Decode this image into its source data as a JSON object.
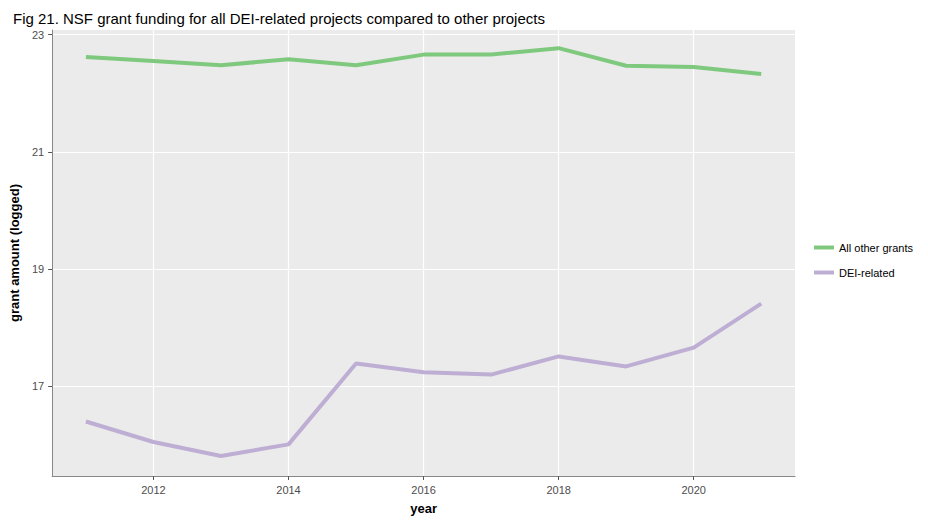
{
  "chart_data": {
    "type": "line",
    "title": "Fig 21. NSF grant funding for all DEI-related projects compared to other projects",
    "x_label": "year",
    "y_label": "grant amount (logged)",
    "x": [
      2011,
      2012,
      2013,
      2014,
      2015,
      2016,
      2017,
      2018,
      2019,
      2020,
      2021
    ],
    "series": [
      {
        "name": "All other grants",
        "color": "#7fc97f",
        "values": [
          22.62,
          22.55,
          22.48,
          22.58,
          22.48,
          22.66,
          22.66,
          22.77,
          22.47,
          22.45,
          22.33
        ]
      },
      {
        "name": "DEI-related",
        "color": "#beaed4",
        "values": [
          16.4,
          16.05,
          15.81,
          16.01,
          17.39,
          17.24,
          17.2,
          17.51,
          17.34,
          17.66,
          18.41
        ]
      }
    ],
    "xlim": [
      2010.5,
      2021.5
    ],
    "xticks": [
      2012,
      2014,
      2016,
      2018,
      2020
    ],
    "ylim": [
      15.47,
      23.08
    ],
    "yticks": [
      17,
      19,
      21,
      23
    ],
    "grid": true,
    "legend": "right",
    "line_style": "solid"
  }
}
